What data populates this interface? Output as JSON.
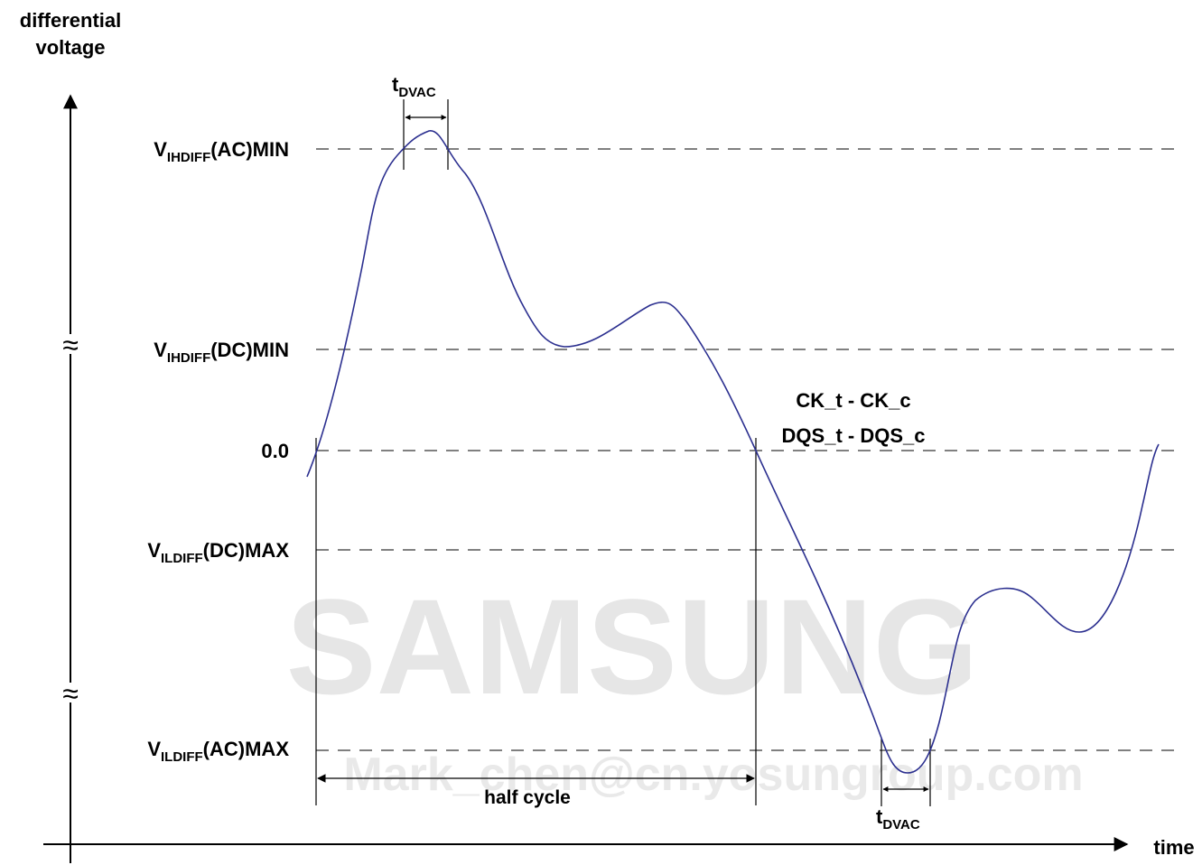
{
  "watermark": {
    "brand": "SAMSUNG",
    "email": "Mark_chen@cn.yosungroup.com"
  },
  "axes": {
    "y_label_line1": "differential",
    "y_label_line2": "voltage",
    "x_label": "time"
  },
  "levels": {
    "ihdiff_ac": {
      "v": "V",
      "sub": "IHDIFF",
      "rest": "(AC)MIN"
    },
    "ihdiff_dc": {
      "v": "V",
      "sub": "IHDIFF",
      "rest": "(DC)MIN"
    },
    "zero": "0.0",
    "ildiff_dc": {
      "v": "V",
      "sub": "ILDIFF",
      "rest": "(DC)MAX"
    },
    "ildiff_ac": {
      "v": "V",
      "sub": "ILDIFF",
      "rest": "(AC)MAX"
    }
  },
  "signal": {
    "line1": "CK_t - CK_c",
    "line2": "DQS_t - DQS_c"
  },
  "annotations": {
    "tdvac_top": {
      "t": "t",
      "sub": "DVAC"
    },
    "tdvac_bottom": {
      "t": "t",
      "sub": "DVAC"
    },
    "half_cycle": "half cycle"
  },
  "axis_break_symbol": "≈"
}
